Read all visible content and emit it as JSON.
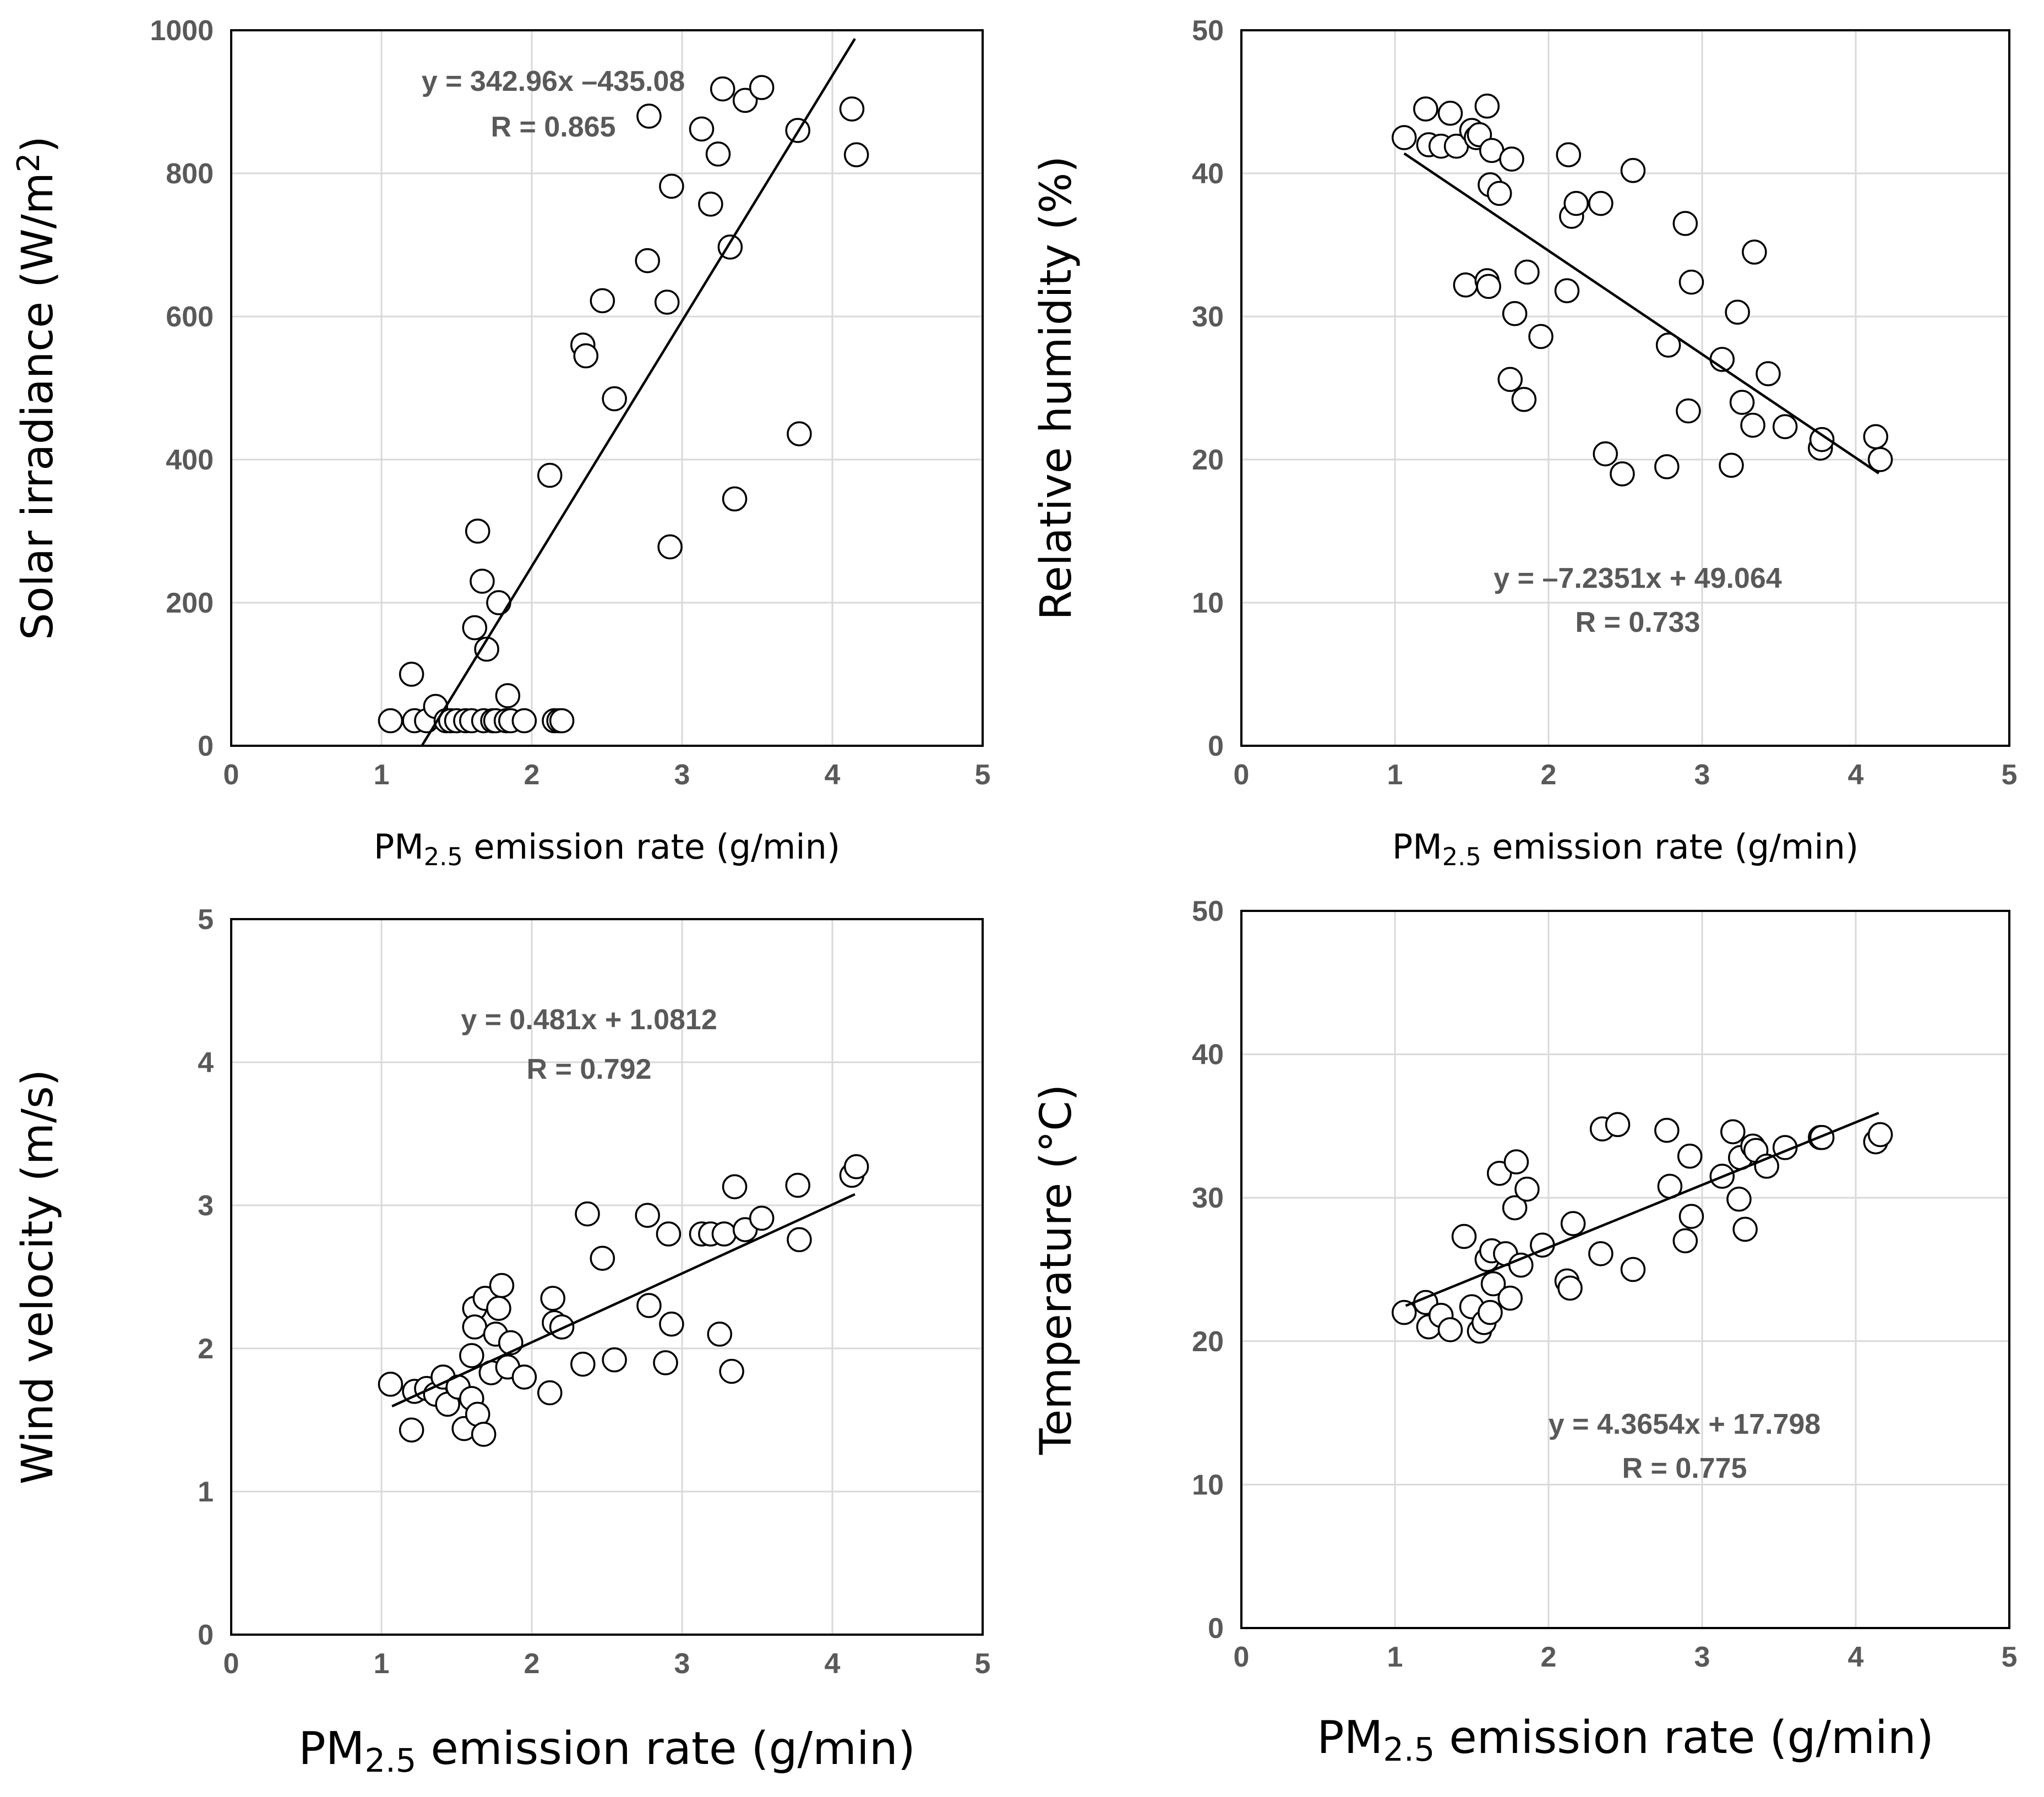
{
  "chart_data": [
    {
      "type": "scatter",
      "ylabel": {
        "main": "Solar irradiance (W/m",
        "sup": "2",
        "end": ")"
      },
      "xlabel": {
        "pre": "PM",
        "sub": "2.5",
        "post": " emission rate (g/min)"
      },
      "xlim": [
        0,
        5
      ],
      "ylim": [
        0,
        1000
      ],
      "xticks": [
        "0",
        "1",
        "2",
        "3",
        "4",
        "5"
      ],
      "yticks": [
        "0",
        "200",
        "400",
        "600",
        "800",
        "1000"
      ],
      "equation": "y = 342.96x –435.08",
      "r_text": "R = 0.865",
      "fit": {
        "slope": 342.96,
        "intercept": -435.08,
        "x_range": [
          1.27,
          4.15
        ]
      },
      "x": [
        1.06,
        1.2,
        1.22,
        1.3,
        1.36,
        1.43,
        1.46,
        1.5,
        1.56,
        1.6,
        1.62,
        1.64,
        1.67,
        1.68,
        1.7,
        1.74,
        1.76,
        1.78,
        1.83,
        1.84,
        1.86,
        1.95,
        2.12,
        2.15,
        2.18,
        2.2,
        2.34,
        2.36,
        2.47,
        2.55,
        2.77,
        2.78,
        2.9,
        2.92,
        2.93,
        3.13,
        3.19,
        3.24,
        3.27,
        3.32,
        3.35,
        3.42,
        3.53,
        3.77,
        3.78,
        4.13,
        4.16
      ],
      "y": [
        35,
        100,
        35,
        35,
        55,
        35,
        35,
        35,
        35,
        35,
        165,
        300,
        230,
        35,
        135,
        35,
        35,
        200,
        35,
        70,
        35,
        35,
        378,
        35,
        35,
        35,
        560,
        545,
        622,
        485,
        678,
        880,
        620,
        278,
        782,
        862,
        757,
        827,
        918,
        697,
        345,
        902,
        920,
        860,
        436,
        890,
        826
      ]
    },
    {
      "type": "scatter",
      "ylabel": {
        "main": "Relative humidity (%)",
        "sup": "",
        "end": ""
      },
      "xlabel": {
        "pre": "PM",
        "sub": "2.5",
        "post": " emission rate (g/min)"
      },
      "xlim": [
        0,
        5
      ],
      "ylim": [
        0,
        50
      ],
      "xticks": [
        "0",
        "1",
        "2",
        "3",
        "4",
        "5"
      ],
      "yticks": [
        "0",
        "10",
        "20",
        "30",
        "40",
        "50"
      ],
      "equation": "y = –7.2351x + 49.064",
      "r_text": "R = 0.733",
      "fit": {
        "slope": -7.2351,
        "intercept": 49.064,
        "x_range": [
          1.06,
          4.15
        ]
      },
      "x": [
        1.06,
        1.2,
        1.22,
        1.3,
        1.36,
        1.4,
        1.46,
        1.5,
        1.53,
        1.55,
        1.6,
        1.6,
        1.61,
        1.62,
        1.63,
        1.68,
        1.75,
        1.76,
        1.78,
        1.84,
        1.86,
        1.95,
        2.12,
        2.13,
        2.15,
        2.18,
        2.34,
        2.37,
        2.48,
        2.55,
        2.77,
        2.78,
        2.89,
        2.91,
        2.93,
        3.13,
        3.19,
        3.23,
        3.26,
        3.33,
        3.34,
        3.43,
        3.54,
        3.77,
        3.78,
        4.13,
        4.16
      ],
      "y": [
        42.5,
        44.5,
        42,
        41.9,
        44.2,
        41.9,
        32.2,
        43,
        42.5,
        42.7,
        44.7,
        32.5,
        32.1,
        39.2,
        41.6,
        38.6,
        25.6,
        41,
        30.2,
        24.2,
        33.1,
        28.6,
        31.8,
        41.3,
        37,
        37.9,
        37.9,
        20.4,
        19,
        40.2,
        19.5,
        28,
        36.5,
        23.4,
        32.4,
        27,
        19.6,
        30.3,
        24,
        22.4,
        34.5,
        26,
        22.3,
        20.8,
        21.4,
        21.6,
        20
      ]
    },
    {
      "type": "scatter",
      "ylabel": {
        "main": "Wind velocity (m/s)",
        "sup": "",
        "end": ""
      },
      "xlabel": {
        "pre": "PM",
        "sub": "2.5",
        "post": " emission rate (g/min)"
      },
      "xlim": [
        0,
        5
      ],
      "ylim": [
        0,
        5
      ],
      "xticks": [
        "0",
        "1",
        "2",
        "3",
        "4",
        "5"
      ],
      "yticks": [
        "0",
        "1",
        "2",
        "3",
        "4",
        "5"
      ],
      "equation": "y = 0.481x + 1.0812",
      "r_text": "R = 0.792",
      "fit": {
        "slope": 0.481,
        "intercept": 1.0812,
        "x_range": [
          1.07,
          4.15
        ]
      },
      "x": [
        1.06,
        1.2,
        1.22,
        1.3,
        1.36,
        1.41,
        1.44,
        1.51,
        1.55,
        1.6,
        1.6,
        1.62,
        1.62,
        1.64,
        1.68,
        1.69,
        1.73,
        1.76,
        1.78,
        1.8,
        1.84,
        1.86,
        1.95,
        2.12,
        2.14,
        2.15,
        2.2,
        2.34,
        2.37,
        2.47,
        2.55,
        2.77,
        2.78,
        2.89,
        2.91,
        2.93,
        3.13,
        3.19,
        3.25,
        3.28,
        3.33,
        3.35,
        3.42,
        3.53,
        3.77,
        3.78,
        4.13,
        4.16
      ],
      "y": [
        1.75,
        1.43,
        1.7,
        1.72,
        1.68,
        1.8,
        1.61,
        1.73,
        1.44,
        1.65,
        1.95,
        2.28,
        2.15,
        1.54,
        1.4,
        2.35,
        1.83,
        2.1,
        2.28,
        2.44,
        1.87,
        2.04,
        1.8,
        1.69,
        2.35,
        2.18,
        2.15,
        1.89,
        2.94,
        2.63,
        1.92,
        2.93,
        2.3,
        1.9,
        2.8,
        2.17,
        2.8,
        2.8,
        2.1,
        2.8,
        1.84,
        3.13,
        2.83,
        2.91,
        3.14,
        2.76,
        3.21,
        3.27
      ]
    },
    {
      "type": "scatter",
      "ylabel": {
        "main": "Temperature (°C)",
        "sup": "",
        "end": ""
      },
      "xlabel": {
        "pre": "PM",
        "sub": "2.5",
        "post": " emission rate (g/min)"
      },
      "xlim": [
        0,
        5
      ],
      "ylim": [
        0,
        50
      ],
      "xticks": [
        "0",
        "1",
        "2",
        "3",
        "4",
        "5"
      ],
      "yticks": [
        "0",
        "10",
        "20",
        "30",
        "40",
        "50"
      ],
      "equation": "y = 4.3654x + 17.798",
      "r_text": "R = 0.775",
      "fit": {
        "slope": 4.3654,
        "intercept": 17.798,
        "x_range": [
          1.07,
          4.15
        ]
      },
      "x": [
        1.06,
        1.2,
        1.22,
        1.3,
        1.36,
        1.45,
        1.5,
        1.55,
        1.58,
        1.6,
        1.62,
        1.63,
        1.64,
        1.68,
        1.72,
        1.75,
        1.78,
        1.79,
        1.82,
        1.86,
        1.96,
        2.12,
        2.14,
        2.16,
        2.34,
        2.35,
        2.45,
        2.55,
        2.77,
        2.79,
        2.89,
        2.92,
        2.93,
        3.13,
        3.2,
        3.24,
        3.25,
        3.28,
        3.33,
        3.35,
        3.42,
        3.54,
        3.77,
        3.78,
        4.13,
        4.16
      ],
      "y": [
        22,
        22.7,
        21,
        21.8,
        20.8,
        27.3,
        22.4,
        20.7,
        21.3,
        25.7,
        22,
        26.3,
        24,
        31.7,
        26.1,
        23,
        29.3,
        32.5,
        25.3,
        30.6,
        26.7,
        24.2,
        23.7,
        28.2,
        26.1,
        34.8,
        35.1,
        25,
        34.7,
        30.8,
        27,
        32.9,
        28.7,
        31.5,
        34.6,
        29.9,
        32.8,
        27.8,
        33.6,
        33.3,
        32.2,
        33.5,
        34.2,
        34.2,
        33.9,
        34.4
      ]
    }
  ]
}
